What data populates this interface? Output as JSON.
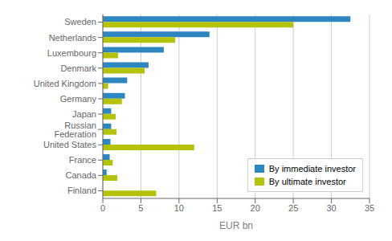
{
  "chart_data": {
    "type": "bar",
    "orientation": "horizontal",
    "categories": [
      "Sweden",
      "Netherlands",
      "Luxembourg",
      "Denmark",
      "United Kingdom",
      "Germany",
      "Japan",
      "Russian Federation",
      "United States",
      "France",
      "Canada",
      "Finland"
    ],
    "series": [
      {
        "name": "By immediate investor",
        "color": "#2e86c1",
        "values": [
          32.5,
          14.0,
          8.0,
          6.0,
          3.2,
          2.9,
          1.1,
          1.1,
          1.0,
          0.9,
          0.5,
          0.0
        ]
      },
      {
        "name": "By ultimate investor",
        "color": "#b5c20a",
        "values": [
          25.0,
          9.5,
          2.0,
          5.5,
          0.7,
          2.5,
          1.7,
          1.8,
          12.0,
          1.3,
          1.9,
          7.0
        ]
      }
    ],
    "xlabel": "EUR bn",
    "xlim": [
      0,
      35
    ],
    "xticks": [
      0,
      5,
      10,
      15,
      20,
      25,
      30,
      35
    ],
    "grid": true,
    "legend": "lower right"
  }
}
